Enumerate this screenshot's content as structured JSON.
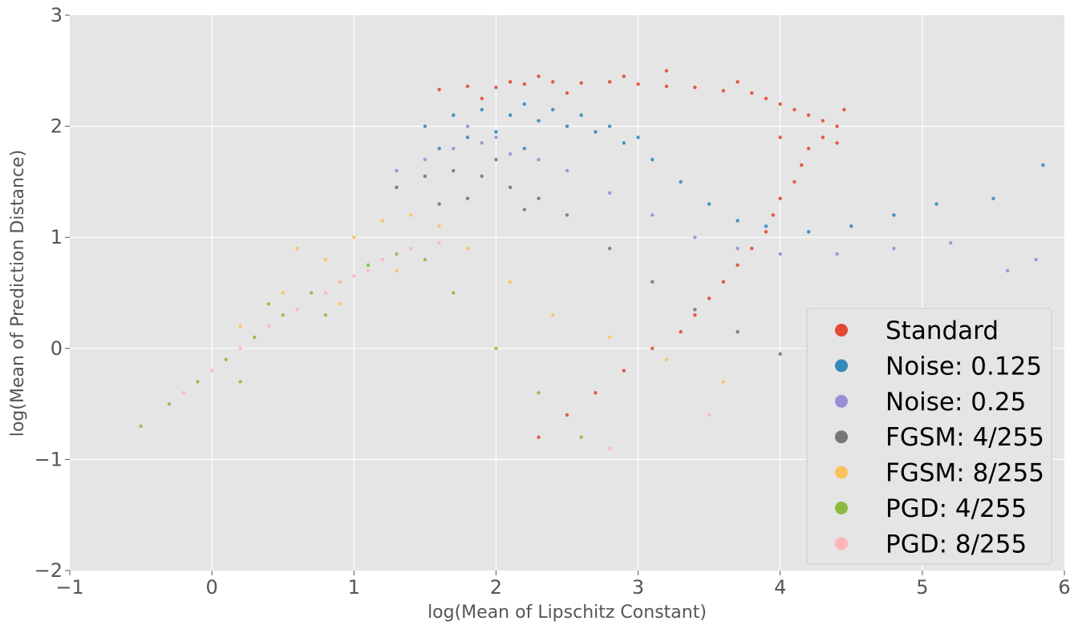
{
  "chart_data": {
    "type": "scatter",
    "title": "",
    "xlabel": "log(Mean of Lipschitz Constant)",
    "ylabel": "log(Mean of Prediction Distance)",
    "xlim": [
      -1,
      6
    ],
    "ylim": [
      -2,
      3
    ],
    "x_ticks": [
      {
        "value": -1,
        "label": "−1"
      },
      {
        "value": 0,
        "label": "0"
      },
      {
        "value": 1,
        "label": "1"
      },
      {
        "value": 2,
        "label": "2"
      },
      {
        "value": 3,
        "label": "3"
      },
      {
        "value": 4,
        "label": "4"
      },
      {
        "value": 5,
        "label": "5"
      },
      {
        "value": 6,
        "label": "6"
      }
    ],
    "y_ticks": [
      {
        "value": -2,
        "label": "−2"
      },
      {
        "value": -1,
        "label": "−1"
      },
      {
        "value": 0,
        "label": "0"
      },
      {
        "value": 1,
        "label": "1"
      },
      {
        "value": 2,
        "label": "2"
      },
      {
        "value": 3,
        "label": "3"
      }
    ],
    "grid": true,
    "legend_position": "lower-right",
    "style": {
      "background": "#e5e5e5",
      "grid_color": "#ffffff"
    },
    "series": [
      {
        "name": "Standard",
        "color": "#e24a33",
        "points": [
          [
            1.6,
            2.33
          ],
          [
            1.8,
            2.36
          ],
          [
            2.0,
            2.35
          ],
          [
            2.2,
            2.38
          ],
          [
            2.4,
            2.4
          ],
          [
            2.6,
            2.39
          ],
          [
            2.8,
            2.4
          ],
          [
            3.0,
            2.38
          ],
          [
            3.2,
            2.36
          ],
          [
            3.4,
            2.35
          ],
          [
            3.6,
            2.32
          ],
          [
            3.8,
            2.3
          ],
          [
            3.9,
            2.25
          ],
          [
            4.0,
            2.2
          ],
          [
            4.1,
            2.15
          ],
          [
            4.2,
            2.1
          ],
          [
            4.3,
            2.05
          ],
          [
            4.4,
            2.0
          ],
          [
            4.3,
            1.9
          ],
          [
            4.2,
            1.8
          ],
          [
            4.15,
            1.65
          ],
          [
            4.1,
            1.5
          ],
          [
            4.0,
            1.35
          ],
          [
            3.95,
            1.2
          ],
          [
            3.9,
            1.05
          ],
          [
            3.8,
            0.9
          ],
          [
            3.7,
            0.75
          ],
          [
            3.6,
            0.6
          ],
          [
            3.5,
            0.45
          ],
          [
            3.4,
            0.3
          ],
          [
            3.3,
            0.15
          ],
          [
            3.1,
            0.0
          ],
          [
            2.9,
            -0.2
          ],
          [
            2.7,
            -0.4
          ],
          [
            2.5,
            -0.6
          ],
          [
            2.3,
            -0.8
          ],
          [
            3.2,
            2.5
          ],
          [
            2.9,
            2.45
          ],
          [
            2.5,
            2.3
          ],
          [
            2.3,
            2.45
          ],
          [
            4.45,
            2.15
          ],
          [
            4.4,
            1.85
          ],
          [
            3.7,
            2.4
          ],
          [
            2.1,
            2.4
          ],
          [
            1.9,
            2.25
          ],
          [
            4.0,
            1.9
          ]
        ]
      },
      {
        "name": "Noise: 0.125",
        "color": "#348abd",
        "points": [
          [
            1.5,
            2.0
          ],
          [
            1.7,
            2.1
          ],
          [
            1.9,
            2.15
          ],
          [
            2.1,
            2.1
          ],
          [
            2.3,
            2.05
          ],
          [
            2.5,
            2.0
          ],
          [
            2.7,
            1.95
          ],
          [
            2.9,
            1.85
          ],
          [
            3.1,
            1.7
          ],
          [
            3.3,
            1.5
          ],
          [
            3.5,
            1.3
          ],
          [
            3.7,
            1.15
          ],
          [
            3.9,
            1.1
          ],
          [
            4.2,
            1.05
          ],
          [
            4.5,
            1.1
          ],
          [
            4.8,
            1.2
          ],
          [
            5.1,
            1.3
          ],
          [
            5.5,
            1.35
          ],
          [
            5.85,
            1.65
          ],
          [
            2.2,
            2.2
          ],
          [
            2.4,
            2.15
          ],
          [
            2.6,
            2.1
          ],
          [
            2.8,
            2.0
          ],
          [
            1.8,
            1.9
          ],
          [
            2.0,
            1.95
          ],
          [
            3.0,
            1.9
          ],
          [
            1.6,
            1.8
          ],
          [
            2.2,
            1.8
          ]
        ]
      },
      {
        "name": "Noise: 0.25",
        "color": "#988ed5",
        "points": [
          [
            1.3,
            1.6
          ],
          [
            1.5,
            1.7
          ],
          [
            1.7,
            1.8
          ],
          [
            1.9,
            1.85
          ],
          [
            2.1,
            1.75
          ],
          [
            2.3,
            1.7
          ],
          [
            2.5,
            1.6
          ],
          [
            2.8,
            1.4
          ],
          [
            3.1,
            1.2
          ],
          [
            3.4,
            1.0
          ],
          [
            3.7,
            0.9
          ],
          [
            4.0,
            0.85
          ],
          [
            4.4,
            0.85
          ],
          [
            4.8,
            0.9
          ],
          [
            5.2,
            0.95
          ],
          [
            5.6,
            0.7
          ],
          [
            5.8,
            0.8
          ],
          [
            1.8,
            2.0
          ],
          [
            2.0,
            1.9
          ]
        ]
      },
      {
        "name": "FGSM: 4/255",
        "color": "#777777",
        "points": [
          [
            1.3,
            1.45
          ],
          [
            1.5,
            1.55
          ],
          [
            1.7,
            1.6
          ],
          [
            1.9,
            1.55
          ],
          [
            2.1,
            1.45
          ],
          [
            2.3,
            1.35
          ],
          [
            2.5,
            1.2
          ],
          [
            2.8,
            0.9
          ],
          [
            3.1,
            0.6
          ],
          [
            3.4,
            0.35
          ],
          [
            3.7,
            0.15
          ],
          [
            4.0,
            -0.05
          ],
          [
            4.3,
            -0.2
          ],
          [
            1.6,
            1.3
          ],
          [
            2.0,
            1.7
          ],
          [
            2.2,
            1.25
          ],
          [
            1.8,
            1.35
          ]
        ]
      },
      {
        "name": "FGSM: 8/255",
        "color": "#fbc15e",
        "points": [
          [
            0.2,
            0.2
          ],
          [
            0.5,
            0.5
          ],
          [
            0.8,
            0.8
          ],
          [
            1.0,
            1.0
          ],
          [
            1.2,
            1.15
          ],
          [
            1.4,
            1.2
          ],
          [
            1.6,
            1.1
          ],
          [
            1.8,
            0.9
          ],
          [
            2.1,
            0.6
          ],
          [
            2.4,
            0.3
          ],
          [
            2.8,
            0.1
          ],
          [
            3.2,
            -0.1
          ],
          [
            3.6,
            -0.3
          ],
          [
            0.9,
            0.4
          ],
          [
            1.3,
            0.7
          ],
          [
            0.6,
            0.9
          ]
        ]
      },
      {
        "name": "PGD: 4/255",
        "color": "#8eba42",
        "points": [
          [
            -0.5,
            -0.7
          ],
          [
            -0.3,
            -0.5
          ],
          [
            -0.1,
            -0.3
          ],
          [
            0.1,
            -0.1
          ],
          [
            0.3,
            0.1
          ],
          [
            0.5,
            0.3
          ],
          [
            0.7,
            0.5
          ],
          [
            0.9,
            0.6
          ],
          [
            1.1,
            0.75
          ],
          [
            1.3,
            0.85
          ],
          [
            1.5,
            0.8
          ],
          [
            1.7,
            0.5
          ],
          [
            2.0,
            0.0
          ],
          [
            2.3,
            -0.4
          ],
          [
            2.6,
            -0.8
          ],
          [
            0.4,
            0.4
          ],
          [
            0.8,
            0.3
          ],
          [
            0.2,
            -0.3
          ]
        ]
      },
      {
        "name": "PGD: 8/255",
        "color": "#ffb5b8",
        "points": [
          [
            -0.2,
            -0.4
          ],
          [
            0.0,
            -0.2
          ],
          [
            0.2,
            0.0
          ],
          [
            0.4,
            0.2
          ],
          [
            0.6,
            0.35
          ],
          [
            0.8,
            0.5
          ],
          [
            1.0,
            0.65
          ],
          [
            1.2,
            0.8
          ],
          [
            1.4,
            0.9
          ],
          [
            1.6,
            0.95
          ],
          [
            1.1,
            0.7
          ],
          [
            0.9,
            0.6
          ],
          [
            2.8,
            -0.9
          ],
          [
            3.5,
            -0.6
          ]
        ]
      }
    ]
  }
}
